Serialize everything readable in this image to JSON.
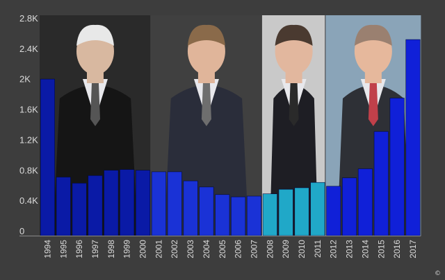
{
  "chart_data": {
    "type": "bar",
    "title": "",
    "xlabel": "",
    "ylabel": "",
    "ylim": [
      0,
      2900
    ],
    "grid": false,
    "ytick_values": [
      0,
      400,
      800,
      1200,
      1600,
      2000,
      2400,
      2800
    ],
    "ytick_labels": [
      "0",
      "0.4K",
      "0.8K",
      "1.2K",
      "1.6K",
      "2K",
      "2.4K",
      "2.8K"
    ],
    "categories": [
      "1994",
      "1995",
      "1996",
      "1997",
      "1998",
      "1999",
      "2000",
      "2001",
      "2002",
      "2003",
      "2004",
      "2005",
      "2006",
      "2007",
      "2008",
      "2009",
      "2010",
      "2011",
      "2012",
      "2013",
      "2014",
      "2015",
      "2016",
      "2017"
    ],
    "values": [
      2060,
      770,
      690,
      790,
      860,
      870,
      860,
      840,
      840,
      720,
      640,
      540,
      510,
      520,
      550,
      610,
      630,
      700,
      650,
      760,
      880,
      1370,
      1810,
      2580
    ],
    "bar_colors": [
      "#0a1aa6",
      "#0a1aa6",
      "#0a1aa6",
      "#0a1aa6",
      "#0a1aa6",
      "#0a1aa6",
      "#0a1aa6",
      "#1a32d6",
      "#1a32d6",
      "#1a32d6",
      "#1a32d6",
      "#1a32d6",
      "#1a32d6",
      "#1a32d6",
      "#20a8c8",
      "#20a8c8",
      "#20a8c8",
      "#20a8c8",
      "#1020d8",
      "#1020d8",
      "#1020d8",
      "#1020d8",
      "#1020d8",
      "#1020d8"
    ],
    "groups": [
      {
        "start": 0,
        "end": 6,
        "bg": "#2a2a2a",
        "suit": "#151515",
        "skin": "#d8b8a0",
        "tie": "#555555",
        "hair": "#e8e8e8"
      },
      {
        "start": 7,
        "end": 13,
        "bg": "#404040",
        "suit": "#2a2d3a",
        "skin": "#e0b59a",
        "tie": "#6e6e6e",
        "hair": "#8a6a4a"
      },
      {
        "start": 14,
        "end": 17,
        "bg": "#c9c9c9",
        "suit": "#1e1e24",
        "skin": "#e2b79e",
        "tie": "#2a2a2a",
        "hair": "#4a3a30"
      },
      {
        "start": 18,
        "end": 23,
        "bg": "#8aa4b8",
        "suit": "#2e3036",
        "skin": "#e6b89c",
        "tie": "#c0404a",
        "hair": "#9a8070"
      }
    ]
  },
  "copyright_symbol": "©"
}
